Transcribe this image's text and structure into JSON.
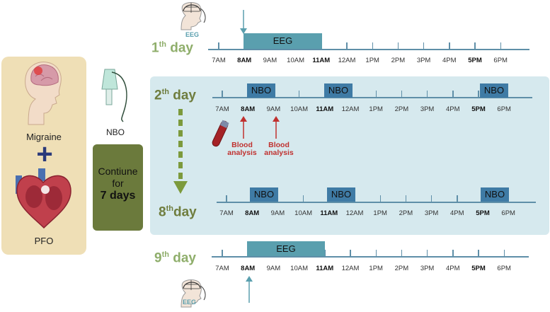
{
  "hours": [
    {
      "label": "7AM",
      "bold": false
    },
    {
      "label": "8AM",
      "bold": true
    },
    {
      "label": "9AM",
      "bold": false
    },
    {
      "label": "10AM",
      "bold": false
    },
    {
      "label": "11AM",
      "bold": true
    },
    {
      "label": "12AM",
      "bold": false
    },
    {
      "label": "1PM",
      "bold": false
    },
    {
      "label": "2PM",
      "bold": false
    },
    {
      "label": "3PM",
      "bold": false
    },
    {
      "label": "4PM",
      "bold": false
    },
    {
      "label": "5PM",
      "bold": true
    },
    {
      "label": "6PM",
      "bold": false
    }
  ],
  "left": {
    "migraine": "Migraine",
    "plus": "+",
    "pfo": "PFO"
  },
  "nbo_label": "NBO",
  "continue": {
    "l1": "Contiune",
    "l2": "for",
    "l3": "7 days"
  },
  "day1": {
    "num": "1",
    "suf": "th",
    "word": "day",
    "bar": "EEG",
    "eeg": "EEG"
  },
  "day2": {
    "num": "2",
    "suf": "th",
    "word": "day",
    "bars": [
      "NBO",
      "NBO",
      "NBO"
    ]
  },
  "day8": {
    "num": "8",
    "suf": "th",
    "word": "day",
    "bars": [
      "NBO",
      "NBO",
      "NBO"
    ]
  },
  "day9": {
    "num": "9",
    "suf": "th",
    "word": "day",
    "bar": "EEG",
    "eeg": "EEG"
  },
  "blood": {
    "a": "Blood\nanalysis",
    "b": "Blood\nanalysis"
  }
}
